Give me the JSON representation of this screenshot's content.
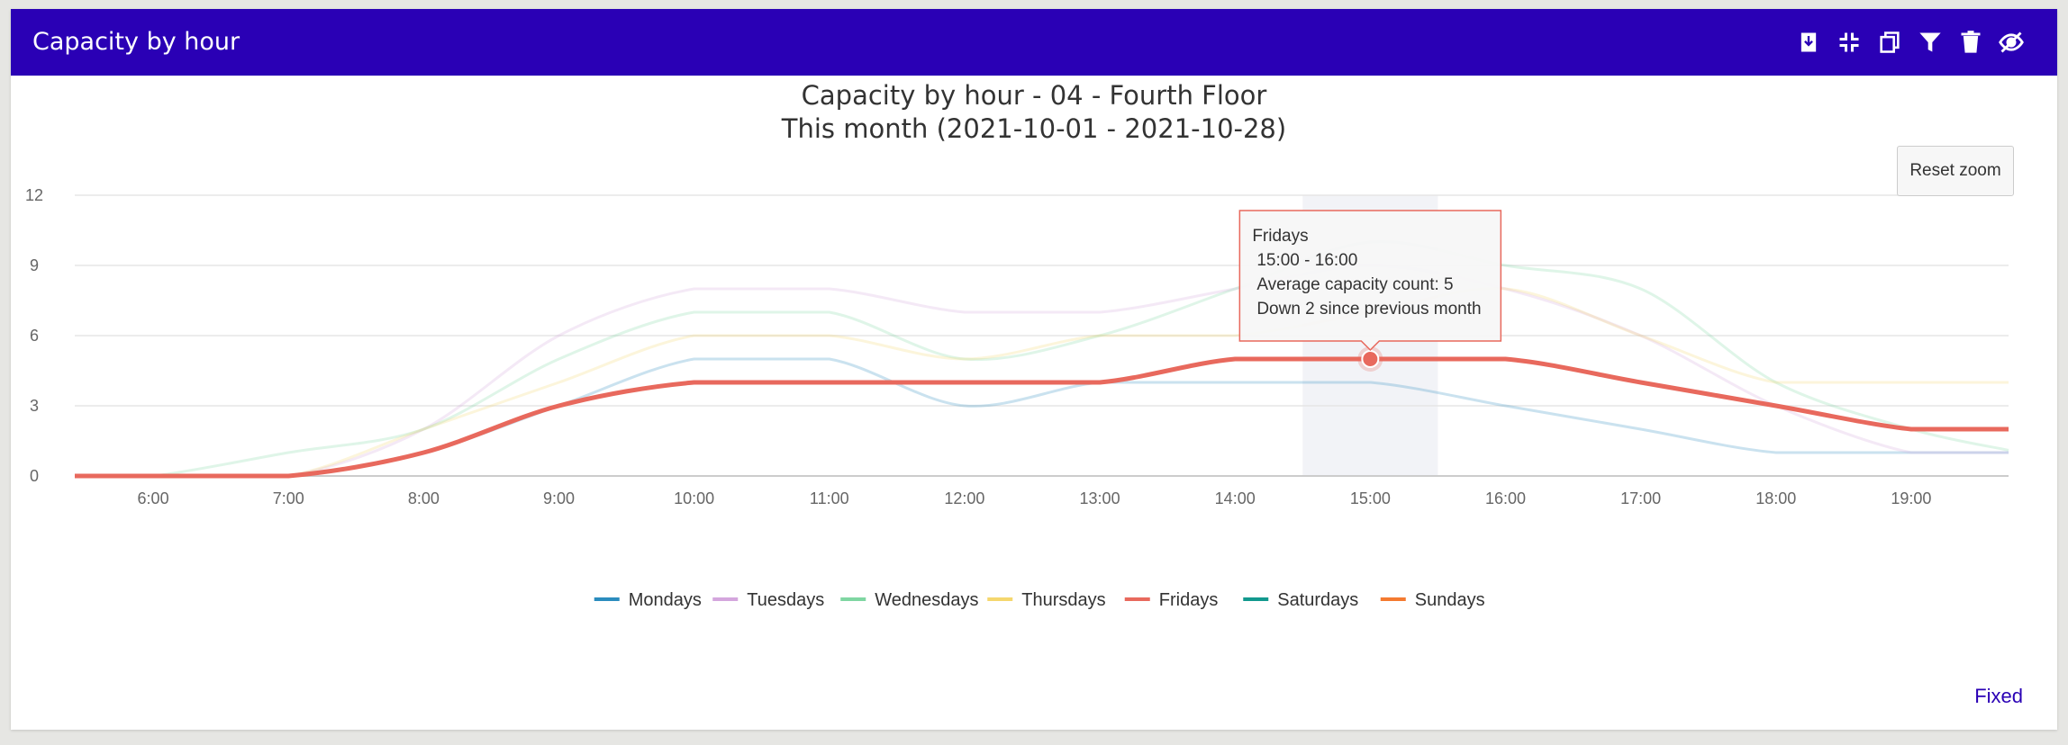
{
  "header": {
    "title": "Capacity by hour",
    "tools": [
      {
        "name": "download-icon"
      },
      {
        "name": "collapse-icon"
      },
      {
        "name": "copy-icon"
      },
      {
        "name": "filter-icon"
      },
      {
        "name": "trash-icon"
      },
      {
        "name": "hide-icon"
      }
    ],
    "bg_color": "#2a00b5"
  },
  "chart_data": {
    "type": "line",
    "title": "Capacity by hour - 04 - Fourth Floor",
    "subtitle": "This month (2021-10-01 - 2021-10-28)",
    "x_tick_labels": [
      "6:00",
      "7:00",
      "8:00",
      "9:00",
      "10:00",
      "11:00",
      "12:00",
      "13:00",
      "14:00",
      "15:00",
      "16:00",
      "17:00",
      "18:00",
      "19:00"
    ],
    "x_range": [
      5.42,
      19.72
    ],
    "ylim": [
      0,
      12
    ],
    "y_ticks": [
      0,
      3,
      6,
      9,
      12
    ],
    "grid": true,
    "legend_position": "bottom-center",
    "highlighted_category": "15:00",
    "series": [
      {
        "name": "Mondays",
        "color": "#2b8cbe",
        "highlighted": false,
        "points": [
          [
            5.42,
            0
          ],
          [
            6,
            0
          ],
          [
            7,
            0
          ],
          [
            8,
            1
          ],
          [
            9,
            3
          ],
          [
            10,
            5
          ],
          [
            11,
            5
          ],
          [
            12,
            3
          ],
          [
            13,
            4
          ],
          [
            14,
            4
          ],
          [
            15,
            4
          ],
          [
            16,
            3
          ],
          [
            17,
            2
          ],
          [
            18,
            1
          ],
          [
            19,
            1
          ],
          [
            19.72,
            1
          ]
        ]
      },
      {
        "name": "Tuesdays",
        "color": "#d4a6dd",
        "highlighted": false,
        "points": [
          [
            5.42,
            0
          ],
          [
            6,
            0
          ],
          [
            7,
            0
          ],
          [
            8,
            2
          ],
          [
            9,
            6
          ],
          [
            10,
            8
          ],
          [
            11,
            8
          ],
          [
            12,
            7
          ],
          [
            13,
            7
          ],
          [
            14,
            8
          ],
          [
            15,
            9
          ],
          [
            16,
            8
          ],
          [
            17,
            6
          ],
          [
            18,
            3
          ],
          [
            19,
            1
          ],
          [
            19.72,
            1
          ]
        ]
      },
      {
        "name": "Wednesdays",
        "color": "#7fd6a2",
        "highlighted": false,
        "points": [
          [
            5.42,
            0
          ],
          [
            6,
            0
          ],
          [
            7,
            1
          ],
          [
            8,
            2
          ],
          [
            9,
            5
          ],
          [
            10,
            7
          ],
          [
            11,
            7
          ],
          [
            12,
            5
          ],
          [
            13,
            6
          ],
          [
            14,
            8
          ],
          [
            15,
            10
          ],
          [
            16,
            9
          ],
          [
            17,
            8
          ],
          [
            18,
            4
          ],
          [
            19,
            2
          ],
          [
            19.72,
            1.1
          ]
        ]
      },
      {
        "name": "Thursdays",
        "color": "#f5d76e",
        "highlighted": false,
        "points": [
          [
            5.42,
            0
          ],
          [
            6,
            0
          ],
          [
            7,
            0
          ],
          [
            8,
            2
          ],
          [
            9,
            4
          ],
          [
            10,
            6
          ],
          [
            11,
            6
          ],
          [
            12,
            5
          ],
          [
            13,
            6
          ],
          [
            14,
            6
          ],
          [
            15,
            7
          ],
          [
            16,
            8
          ],
          [
            17,
            6
          ],
          [
            18,
            4
          ],
          [
            19,
            4
          ],
          [
            19.72,
            4
          ]
        ]
      },
      {
        "name": "Fridays",
        "color": "#e8695d",
        "highlighted": true,
        "points": [
          [
            5.42,
            0
          ],
          [
            6,
            0
          ],
          [
            7,
            0
          ],
          [
            8,
            1
          ],
          [
            9,
            3
          ],
          [
            10,
            4
          ],
          [
            11,
            4
          ],
          [
            12,
            4
          ],
          [
            13,
            4
          ],
          [
            14,
            5
          ],
          [
            15,
            5
          ],
          [
            16,
            5
          ],
          [
            17,
            4
          ],
          [
            18,
            3
          ],
          [
            19,
            2
          ],
          [
            19.72,
            2
          ]
        ]
      },
      {
        "name": "Saturdays",
        "color": "#12998e",
        "highlighted": false,
        "points": []
      },
      {
        "name": "Sundays",
        "color": "#f47a30",
        "highlighted": false,
        "points": []
      }
    ],
    "tooltip": {
      "series": "Fridays",
      "lines": [
        "Fridays",
        "15:00 - 16:00",
        "Average capacity count: 5",
        "Down 2 since previous month"
      ],
      "x": 15,
      "y": 5
    }
  },
  "reset_zoom_label": "Reset zoom",
  "fixed_label": "Fixed"
}
